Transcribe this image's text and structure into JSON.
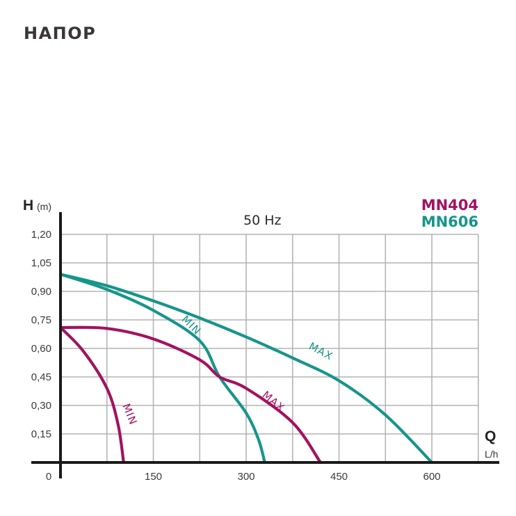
{
  "page": {
    "title": "НАПОР"
  },
  "colors": {
    "MN404": "#a3125f",
    "MN606": "#17958a",
    "grid": "#b4b4b4",
    "axis": "#1a1a1a"
  },
  "chart_data": {
    "type": "line",
    "title": "50 Hz",
    "xlabel": "Q",
    "xunit": "L/h",
    "ylabel": "H",
    "yunit": "(m)",
    "xlim": [
      0,
      700
    ],
    "ylim": [
      0,
      1.2
    ],
    "grid": true,
    "legend_position": "top-right",
    "legend": [
      "MN404",
      "MN606"
    ],
    "x_ticks": [
      "0",
      "150",
      "300",
      "450",
      "600"
    ],
    "x_tick_values": [
      0,
      150,
      300,
      450,
      600
    ],
    "x_gridlines": [
      75,
      150,
      225,
      300,
      375,
      450,
      525,
      600,
      675
    ],
    "y_ticks": [
      "1,20",
      "1,05",
      "0,90",
      "0,75",
      "0,60",
      "0,45",
      "0,30",
      "0,15"
    ],
    "y_tick_values": [
      1.2,
      1.05,
      0.9,
      0.75,
      0.6,
      0.45,
      0.3,
      0.15
    ],
    "series": [
      {
        "name": "MN606 MAX",
        "model": "MN606",
        "mode": "MAX",
        "x": [
          0,
          75,
          150,
          225,
          300,
          375,
          450,
          525,
          600
        ],
        "y": [
          0.99,
          0.93,
          0.85,
          0.76,
          0.66,
          0.55,
          0.43,
          0.25,
          0.0
        ],
        "label_pos": {
          "q": 400,
          "h": 0.6,
          "angle": 28
        }
      },
      {
        "name": "MN606 MIN",
        "model": "MN606",
        "mode": "MIN",
        "x": [
          0,
          75,
          150,
          225,
          257,
          300,
          320,
          330
        ],
        "y": [
          0.99,
          0.91,
          0.8,
          0.64,
          0.45,
          0.26,
          0.12,
          0.0
        ],
        "label_pos": {
          "q": 195,
          "h": 0.75,
          "angle": 45
        }
      },
      {
        "name": "MN404 MAX",
        "model": "MN404",
        "mode": "MAX",
        "x": [
          0,
          75,
          150,
          225,
          257,
          300,
          375,
          420
        ],
        "y": [
          0.71,
          0.705,
          0.65,
          0.54,
          0.45,
          0.39,
          0.21,
          0.0
        ],
        "label_pos": {
          "q": 325,
          "h": 0.35,
          "angle": 40
        }
      },
      {
        "name": "MN404 MIN",
        "model": "MN404",
        "mode": "MIN",
        "x": [
          0,
          37,
          75,
          93,
          102
        ],
        "y": [
          0.71,
          0.585,
          0.39,
          0.2,
          0.0
        ],
        "label_pos": {
          "q": 100,
          "h": 0.3,
          "angle": 68
        }
      }
    ]
  }
}
